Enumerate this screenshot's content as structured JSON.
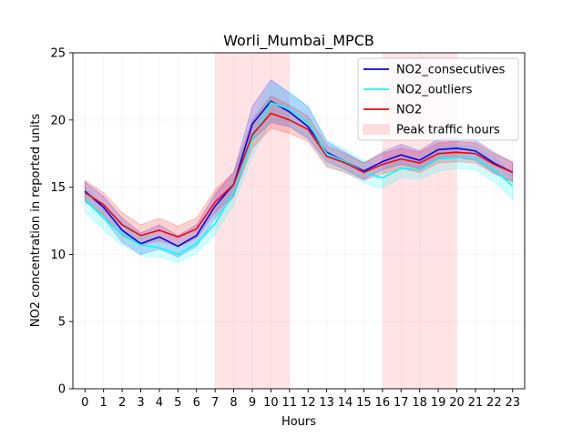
{
  "chart_data": {
    "type": "line",
    "title": "Worli_Mumbai_MPCB",
    "xlabel": "Hours",
    "ylabel": "NO2 concentration in reported units",
    "xlim": [
      -0.65,
      23.65
    ],
    "ylim": [
      0,
      25
    ],
    "x": [
      0,
      1,
      2,
      3,
      4,
      5,
      6,
      7,
      8,
      9,
      10,
      11,
      12,
      13,
      14,
      15,
      16,
      17,
      18,
      19,
      20,
      21,
      22,
      23
    ],
    "x_tick_labels": [
      "0",
      "1",
      "2",
      "3",
      "4",
      "5",
      "6",
      "7",
      "8",
      "9",
      "10",
      "11",
      "12",
      "13",
      "14",
      "15",
      "16",
      "17",
      "18",
      "19",
      "20",
      "21",
      "22",
      "23"
    ],
    "y_ticks": [
      0,
      5,
      10,
      15,
      20,
      25
    ],
    "y_tick_labels": [
      "0",
      "5",
      "10",
      "15",
      "20",
      "25"
    ],
    "grid": true,
    "legend_position": "upper-right",
    "shaded_regions": [
      {
        "name": "Peak traffic hours",
        "x_start": 7,
        "x_end": 11,
        "color": "#ffc0c5"
      },
      {
        "name": "Peak traffic hours",
        "x_start": 16,
        "x_end": 20,
        "color": "#ffc0c5"
      }
    ],
    "series": [
      {
        "name": "NO2_consecutives",
        "color": "#0000ff",
        "values": [
          14.7,
          13.5,
          11.8,
          10.8,
          11.3,
          10.6,
          11.4,
          13.6,
          15.2,
          19.7,
          21.4,
          20.6,
          19.5,
          17.6,
          16.9,
          16.2,
          16.9,
          17.4,
          17.0,
          17.8,
          17.9,
          17.7,
          16.8,
          16.1
        ],
        "lower": [
          14.0,
          12.7,
          10.9,
          10.0,
          10.4,
          9.8,
          10.6,
          12.7,
          14.3,
          18.5,
          19.8,
          19.5,
          18.6,
          16.9,
          16.3,
          15.6,
          16.3,
          16.7,
          16.4,
          17.1,
          17.2,
          17.0,
          16.1,
          15.4
        ],
        "upper": [
          15.4,
          14.3,
          12.7,
          11.6,
          12.2,
          11.4,
          12.2,
          14.5,
          16.1,
          21.0,
          23.0,
          22.0,
          21.0,
          18.4,
          17.6,
          16.8,
          17.6,
          18.2,
          17.7,
          18.6,
          18.7,
          18.5,
          17.6,
          16.8
        ]
      },
      {
        "name": "NO2_outliers",
        "color": "#00ffff",
        "values": [
          14.1,
          12.7,
          11.5,
          10.7,
          10.5,
          10.0,
          10.8,
          12.3,
          14.6,
          18.6,
          21.3,
          20.8,
          19.8,
          17.5,
          16.9,
          16.1,
          15.7,
          16.4,
          16.3,
          17.1,
          17.2,
          17.2,
          16.3,
          15.1
        ],
        "lower": [
          13.2,
          11.8,
          10.7,
          9.9,
          9.8,
          9.4,
          10.1,
          11.5,
          13.7,
          17.3,
          20.0,
          19.6,
          18.7,
          16.6,
          16.1,
          15.3,
          14.9,
          15.7,
          15.6,
          16.2,
          16.4,
          16.3,
          15.4,
          14.1
        ],
        "upper": [
          15.0,
          13.7,
          12.4,
          11.5,
          11.3,
          10.7,
          11.5,
          13.2,
          15.6,
          20.0,
          22.8,
          22.1,
          21.0,
          18.5,
          17.8,
          17.0,
          16.6,
          17.2,
          17.1,
          18.0,
          18.1,
          18.0,
          17.2,
          16.0
        ]
      },
      {
        "name": "NO2",
        "color": "#ff0000",
        "values": [
          14.6,
          13.7,
          12.2,
          11.4,
          11.8,
          11.3,
          11.9,
          13.9,
          15.2,
          18.9,
          20.5,
          20.0,
          19.3,
          17.3,
          16.8,
          16.1,
          16.7,
          17.1,
          16.8,
          17.5,
          17.6,
          17.5,
          16.7,
          16.1
        ],
        "lower": [
          13.9,
          12.9,
          11.4,
          10.7,
          11.0,
          10.6,
          11.2,
          13.1,
          14.4,
          17.9,
          19.4,
          19.0,
          18.4,
          16.5,
          16.1,
          15.5,
          16.0,
          16.4,
          16.1,
          16.8,
          16.9,
          16.8,
          16.0,
          15.4
        ],
        "upper": [
          15.5,
          14.6,
          13.1,
          12.2,
          12.7,
          12.1,
          12.7,
          14.8,
          16.1,
          20.0,
          21.8,
          21.1,
          20.3,
          18.1,
          17.5,
          16.8,
          17.5,
          17.9,
          17.6,
          18.3,
          18.4,
          18.3,
          17.5,
          16.9
        ]
      }
    ],
    "legend": [
      {
        "label": "NO2_consecutives",
        "kind": "line",
        "color": "#0000ff"
      },
      {
        "label": "NO2_outliers",
        "kind": "line",
        "color": "#00ffff"
      },
      {
        "label": "NO2",
        "kind": "line",
        "color": "#ff0000"
      },
      {
        "label": "Peak traffic hours",
        "kind": "patch",
        "color": "#ffc0c5"
      }
    ]
  }
}
